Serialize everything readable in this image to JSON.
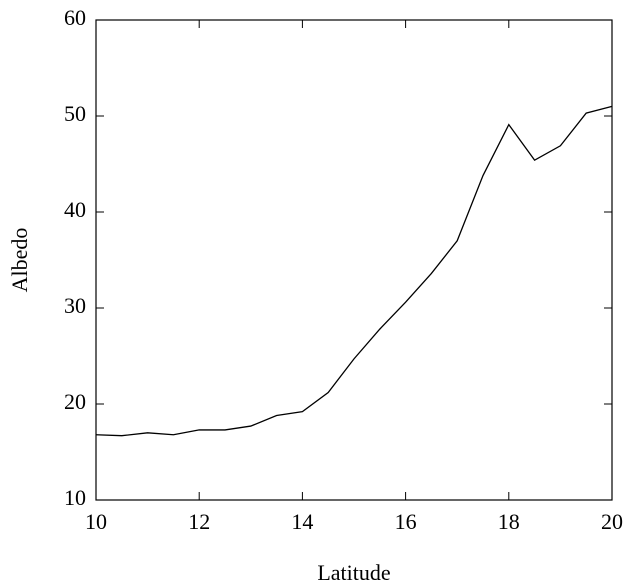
{
  "chart_data": {
    "type": "line",
    "xlabel": "Latitude",
    "ylabel": "Albedo",
    "x": [
      10,
      10.5,
      11,
      11.5,
      12,
      12.5,
      13,
      13.5,
      14,
      14.5,
      15,
      15.5,
      16,
      16.5,
      17,
      17.5,
      18,
      18.5,
      19,
      19.5,
      20
    ],
    "series": [
      {
        "color": "#000000",
        "values": [
          16.8,
          16.7,
          17.0,
          16.8,
          17.3,
          17.3,
          17.7,
          18.8,
          19.2,
          21.2,
          24.7,
          27.8,
          30.6,
          33.6,
          37.0,
          43.8,
          49.1,
          45.4,
          46.9,
          50.3,
          51.0
        ]
      }
    ],
    "xlim": [
      10,
      20
    ],
    "xticks": [
      10,
      12,
      14,
      16,
      18,
      20
    ],
    "ylim": [
      10,
      60
    ],
    "yticks": [
      10,
      20,
      30,
      40,
      50,
      60
    ],
    "grid": false
  }
}
